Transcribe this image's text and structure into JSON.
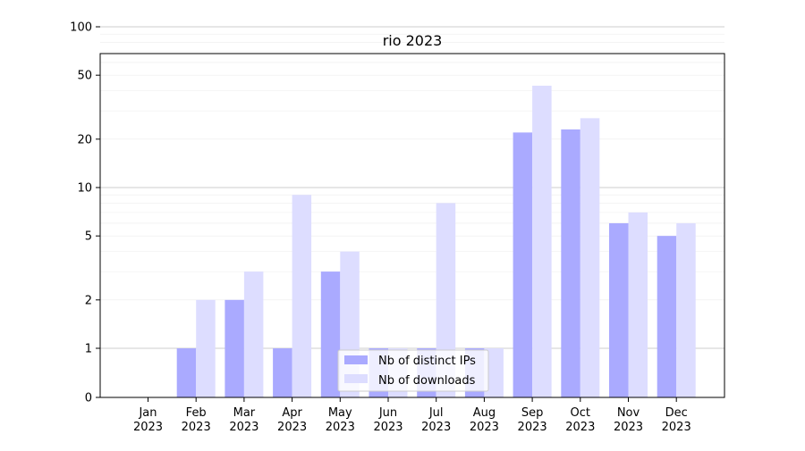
{
  "chart_data": {
    "type": "bar",
    "title": "rio 2023",
    "xlabel": "",
    "ylabel": "",
    "y_scale": "log",
    "grid": "horizontal",
    "legend_position": "lower-center",
    "categories": [
      "Jan\n2023",
      "Feb\n2023",
      "Mar\n2023",
      "Apr\n2023",
      "May\n2023",
      "Jun\n2023",
      "Jul\n2023",
      "Aug\n2023",
      "Sep\n2023",
      "Oct\n2023",
      "Nov\n2023",
      "Dec\n2023"
    ],
    "y_ticks": [
      "0",
      "1",
      "2",
      "5",
      "10",
      "20",
      "50",
      "100"
    ],
    "series": [
      {
        "name": "Nb of distinct IPs",
        "color": "#aaaaff",
        "values": [
          0,
          1,
          2,
          1,
          3,
          1,
          1,
          1,
          22,
          23,
          6,
          5
        ]
      },
      {
        "name": "Nb of downloads",
        "color": "#ddddff",
        "values": [
          0,
          2,
          3,
          9,
          4,
          1,
          8,
          1,
          43,
          27,
          7,
          6
        ]
      }
    ]
  }
}
